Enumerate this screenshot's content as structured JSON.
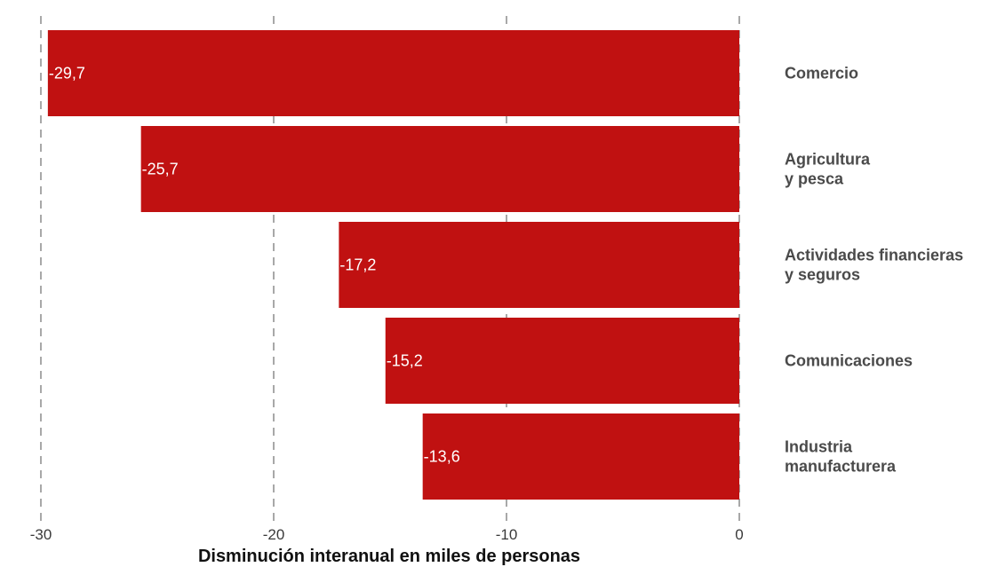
{
  "chart_data": {
    "type": "bar",
    "orientation": "horizontal",
    "categories": [
      [
        "Comercio"
      ],
      [
        "Agricultura",
        "y pesca"
      ],
      [
        "Actividades financieras",
        "y seguros"
      ],
      [
        "Comunicaciones"
      ],
      [
        "Industria",
        "manufacturera"
      ]
    ],
    "values": [
      -29.7,
      -25.7,
      -17.2,
      -15.2,
      -13.6
    ],
    "value_labels": [
      "-29,7",
      "-25,7",
      "-17,2",
      "-15,2",
      "-13,6"
    ],
    "xlabel": "Disminución interanual en miles de personas",
    "xlim": [
      -30,
      0
    ],
    "xticks": [
      -30,
      -20,
      -10,
      0
    ],
    "xtick_labels": [
      "-30",
      "-20",
      "-10",
      "0"
    ],
    "grid": "vertical dashed",
    "bar_color": "#c01111",
    "label_position": "right"
  }
}
